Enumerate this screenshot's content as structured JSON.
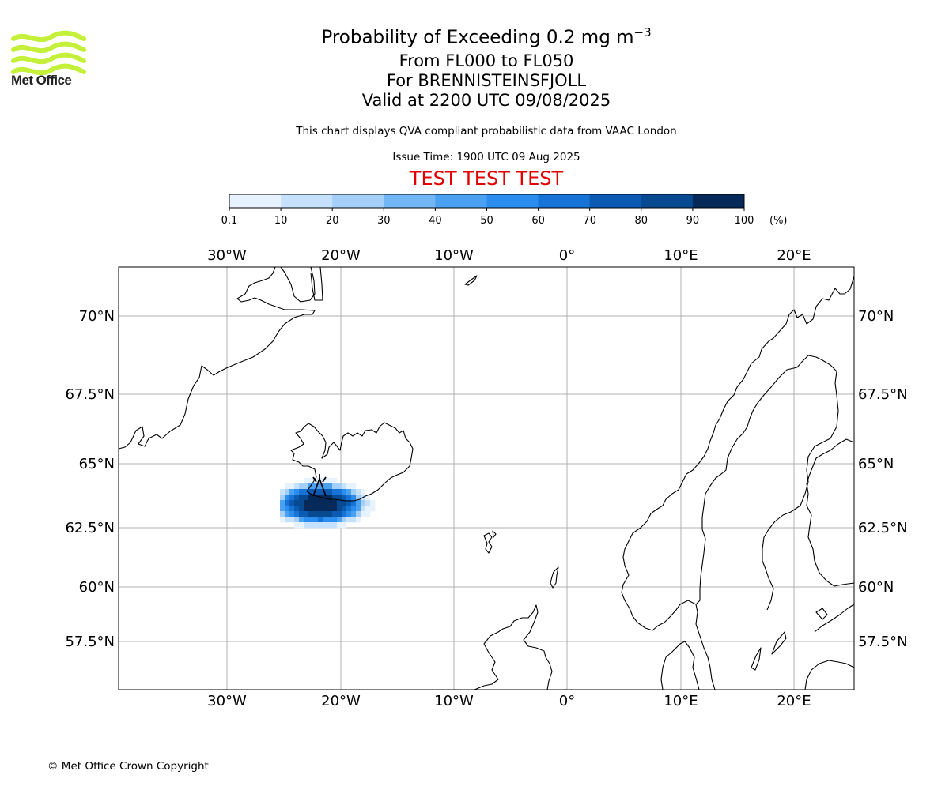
{
  "logo": {
    "text": "Met Office",
    "icon": "met-office-wave-logo",
    "color": "#c4f03a"
  },
  "title": {
    "line1_main": "Probability of Exceeding 0.2 mg m",
    "line1_sup": "−3",
    "line2": "From FL000 to FL050",
    "line3": "For BRENNISTEINSFJOLL",
    "line4": "Valid at 2200 UTC 09/08/2025"
  },
  "subtitle": "This chart displays QVA compliant probabilistic data from VAAC London",
  "issue_time": "Issue Time: 1900 UTC 09 Aug 2025",
  "test_banner": "TEST TEST TEST",
  "copyright": "© Met Office Crown Copyright",
  "colorbar": {
    "unit_label": "(%)",
    "ticks": [
      "0.1",
      "10",
      "20",
      "30",
      "40",
      "50",
      "60",
      "70",
      "80",
      "90",
      "100"
    ],
    "colors": [
      "#e6f2fd",
      "#c6e1fb",
      "#a3cff9",
      "#73b6f5",
      "#4aa0f1",
      "#2b8ded",
      "#1773d6",
      "#0b5bb5",
      "#084a92",
      "#052a5a"
    ]
  },
  "map": {
    "lon_labels": [
      "30°W",
      "20°W",
      "10°W",
      "0°",
      "10°E",
      "20°E"
    ],
    "lat_labels": [
      "70°N",
      "67.5°N",
      "65°N",
      "62.5°N",
      "60°N",
      "57.5°N"
    ],
    "volcano_icon": "volcano-marker-icon"
  }
}
